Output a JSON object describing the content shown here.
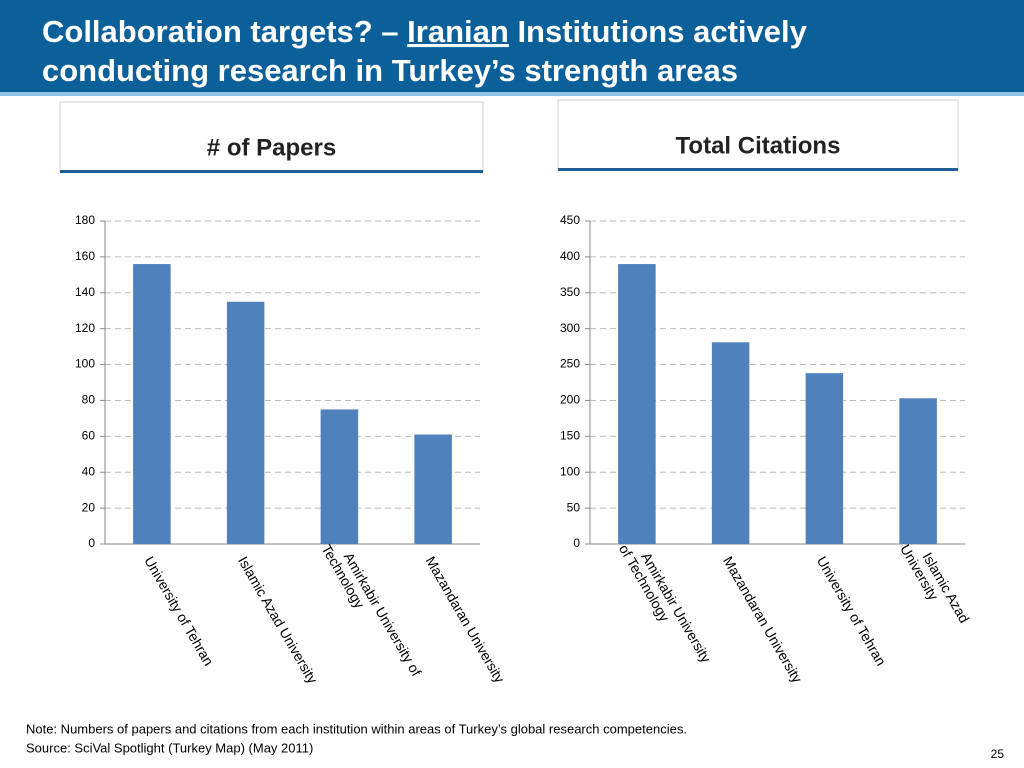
{
  "slide": {
    "title_parts": [
      "Collaboration targets? – ",
      "Iranian",
      " Institutions actively",
      "conducting research in Turkey’s strength areas"
    ],
    "notes": [
      "Note: Numbers of papers and citations from each institution within areas of Turkey’s global research competencies.",
      "Source: SciVal Spotlight  (Turkey Map) (May 2011)"
    ],
    "page_number": "25"
  },
  "chart_data": [
    {
      "type": "bar",
      "title": "# of Papers",
      "color": "#4f81bd",
      "grid": true,
      "categories": [
        "University of Tehran",
        "Islamic Azad University",
        "Amirkabir University of Technology",
        "Mazandaran University"
      ],
      "values": [
        156,
        135,
        75,
        61
      ],
      "ylim": [
        0,
        180
      ],
      "yticks": [
        0,
        20,
        40,
        60,
        80,
        100,
        120,
        140,
        160,
        180
      ]
    },
    {
      "type": "bar",
      "title": "Total Citations",
      "color": "#4f81bd",
      "grid": true,
      "categories": [
        "Amirkabir University of Technology",
        "Mazandaran University",
        "University of Tehran",
        "Islamic Azad University"
      ],
      "values": [
        390,
        281,
        238,
        203
      ],
      "ylim": [
        0,
        450
      ],
      "yticks": [
        0,
        50,
        100,
        150,
        200,
        250,
        300,
        350,
        400,
        450
      ]
    }
  ]
}
